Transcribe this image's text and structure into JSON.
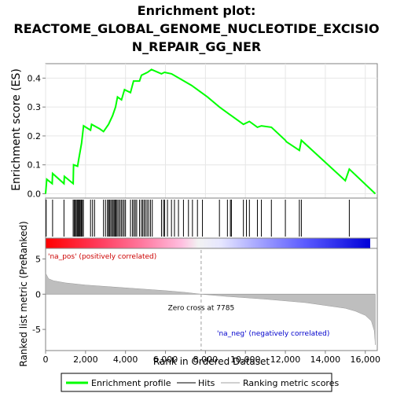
{
  "chart_data": {
    "type": "line",
    "title_lines": [
      "Enrichment plot:",
      "REACTOME_GLOBAL_GENOME_NUCLEOTIDE_EXCISIO",
      "N_REPAIR_GG_NER"
    ],
    "xlabel": "Rank in Ordered Dataset",
    "ylabel_top": "Enrichment score (ES)",
    "ylabel_bottom": "Ranked list metric (PreRanked)",
    "xlim": [
      0,
      16600
    ],
    "x_ticks": [
      0,
      2000,
      4000,
      6000,
      8000,
      10000,
      12000,
      14000,
      16000
    ],
    "x_tick_labels": [
      "0",
      "2,000",
      "4,000",
      "6,000",
      "8,000",
      "10,000",
      "12,000",
      "14,000",
      "16,000"
    ],
    "es_ylim": [
      -0.015,
      0.45
    ],
    "es_ticks": [
      0.0,
      0.1,
      0.2,
      0.3,
      0.4
    ],
    "es_tick_labels": [
      "0.0",
      "0.1",
      "0.2",
      "0.3",
      "0.4"
    ],
    "metric_ylim": [
      -8,
      6.5
    ],
    "metric_ticks": [
      5,
      0,
      -5
    ],
    "metric_tick_labels": [
      "5",
      "0",
      "-5"
    ],
    "zero_cross_rank": 7785,
    "zero_cross_label": "Zero cross at 7785",
    "pos_label": "'na_pos' (positively correlated)",
    "neg_label": "'na_neg' (negatively correlated)",
    "colors": {
      "es_line": "#00ff00",
      "hits": "#000000",
      "metric_fill": "#bebebe",
      "pos_text": "#cc0000",
      "neg_text": "#0000cc"
    },
    "legend": [
      {
        "label": "Enrichment profile",
        "kind": "line",
        "color": "#00ff00"
      },
      {
        "label": "Hits",
        "kind": "line",
        "color": "#808080"
      },
      {
        "label": "Ranking metric scores",
        "kind": "line",
        "color": "#d0d0d0"
      }
    ],
    "es_profile": [
      [
        0,
        0.0
      ],
      [
        60,
        0.05
      ],
      [
        330,
        0.035
      ],
      [
        350,
        0.07
      ],
      [
        920,
        0.035
      ],
      [
        940,
        0.06
      ],
      [
        1380,
        0.035
      ],
      [
        1400,
        0.1
      ],
      [
        1600,
        0.095
      ],
      [
        1650,
        0.115
      ],
      [
        1800,
        0.175
      ],
      [
        1900,
        0.235
      ],
      [
        2250,
        0.22
      ],
      [
        2300,
        0.24
      ],
      [
        2700,
        0.225
      ],
      [
        2900,
        0.215
      ],
      [
        3150,
        0.24
      ],
      [
        3350,
        0.27
      ],
      [
        3500,
        0.3
      ],
      [
        3600,
        0.335
      ],
      [
        3800,
        0.325
      ],
      [
        3950,
        0.36
      ],
      [
        4250,
        0.35
      ],
      [
        4400,
        0.39
      ],
      [
        4700,
        0.39
      ],
      [
        4800,
        0.41
      ],
      [
        5100,
        0.42
      ],
      [
        5300,
        0.43
      ],
      [
        5800,
        0.415
      ],
      [
        5950,
        0.42
      ],
      [
        6300,
        0.415
      ],
      [
        6800,
        0.395
      ],
      [
        7300,
        0.375
      ],
      [
        7600,
        0.36
      ],
      [
        8100,
        0.335
      ],
      [
        8700,
        0.3
      ],
      [
        9200,
        0.275
      ],
      [
        9300,
        0.27
      ],
      [
        9900,
        0.24
      ],
      [
        10200,
        0.25
      ],
      [
        10600,
        0.23
      ],
      [
        10800,
        0.235
      ],
      [
        11300,
        0.23
      ],
      [
        12000,
        0.185
      ],
      [
        12050,
        0.18
      ],
      [
        12700,
        0.15
      ],
      [
        12800,
        0.185
      ],
      [
        15000,
        0.045
      ],
      [
        15200,
        0.085
      ],
      [
        16500,
        0.0
      ]
    ],
    "hits": [
      30,
      350,
      920,
      1380,
      1430,
      1480,
      1530,
      1580,
      1620,
      1660,
      1700,
      1740,
      1790,
      1840,
      1890,
      2250,
      2350,
      2450,
      2900,
      3000,
      3100,
      3150,
      3200,
      3260,
      3320,
      3380,
      3430,
      3480,
      3530,
      3580,
      3650,
      3720,
      3790,
      3860,
      3930,
      4000,
      4250,
      4350,
      4420,
      4490,
      4560,
      4700,
      4790,
      4860,
      4930,
      5000,
      5080,
      5160,
      5250,
      5340,
      5800,
      5900,
      5960,
      6100,
      6300,
      6450,
      6650,
      6900,
      7150,
      7350,
      7600,
      7850,
      8700,
      9100,
      9250,
      9300,
      9900,
      10050,
      10200,
      10600,
      10800,
      11300,
      12000,
      12700,
      12800,
      15200
    ],
    "metric_curve": [
      [
        0,
        3.0
      ],
      [
        150,
        2.2
      ],
      [
        400,
        1.9
      ],
      [
        1000,
        1.6
      ],
      [
        2000,
        1.3
      ],
      [
        3000,
        1.1
      ],
      [
        4000,
        0.9
      ],
      [
        5000,
        0.7
      ],
      [
        6000,
        0.5
      ],
      [
        7000,
        0.25
      ],
      [
        7785,
        0.0
      ],
      [
        9000,
        -0.3
      ],
      [
        10000,
        -0.5
      ],
      [
        11000,
        -0.7
      ],
      [
        12000,
        -0.95
      ],
      [
        13000,
        -1.2
      ],
      [
        14000,
        -1.6
      ],
      [
        15000,
        -2.0
      ],
      [
        15500,
        -2.4
      ],
      [
        16000,
        -3.0
      ],
      [
        16300,
        -3.8
      ],
      [
        16450,
        -5.2
      ],
      [
        16500,
        -7.2
      ]
    ]
  }
}
